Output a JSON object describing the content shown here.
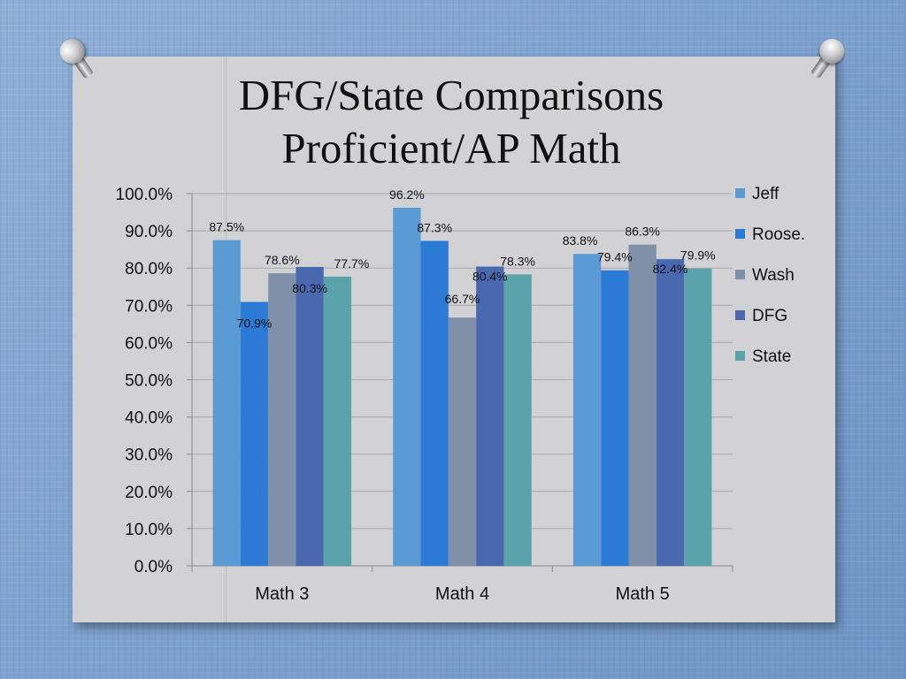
{
  "slide": {
    "title_line1": "DFG/State Comparisons",
    "title_line2": "Proficient/AP Math"
  },
  "colors": {
    "Jeff": "#5b9bd5",
    "Roose.": "#2b7bd6",
    "Wash": "#8090a8",
    "DFG": "#4a68b0",
    "State": "#5aa3aa"
  },
  "chart_data": {
    "type": "bar",
    "title": "",
    "xlabel": "",
    "ylabel": "",
    "categories": [
      "Math 3",
      "Math 4",
      "Math 5"
    ],
    "series": [
      {
        "name": "Jeff",
        "values": [
          87.5,
          96.2,
          83.8
        ],
        "labels": [
          "87.5%",
          "96.2%",
          "83.8%"
        ]
      },
      {
        "name": "Roose.",
        "values": [
          70.9,
          87.3,
          79.4
        ],
        "labels": [
          "70.9%",
          "87.3%",
          "79.4%"
        ]
      },
      {
        "name": "Wash",
        "values": [
          78.6,
          66.7,
          86.3
        ],
        "labels": [
          "78.6%",
          "66.7%",
          "86.3%"
        ]
      },
      {
        "name": "DFG",
        "values": [
          80.3,
          80.4,
          82.4
        ],
        "labels": [
          "80.3%",
          "80.4%",
          "82.4%"
        ]
      },
      {
        "name": "State",
        "values": [
          77.7,
          78.3,
          79.9
        ],
        "labels": [
          "77.7%",
          "78.3%",
          "79.9%"
        ]
      }
    ],
    "ylim": [
      0,
      100
    ],
    "yticks": [
      0,
      10,
      20,
      30,
      40,
      50,
      60,
      70,
      80,
      90,
      100
    ],
    "ytick_labels": [
      "0.0%",
      "10.0%",
      "20.0%",
      "30.0%",
      "40.0%",
      "50.0%",
      "60.0%",
      "70.0%",
      "80.0%",
      "90.0%",
      "100.0%"
    ],
    "grid": true,
    "legend": "right"
  }
}
